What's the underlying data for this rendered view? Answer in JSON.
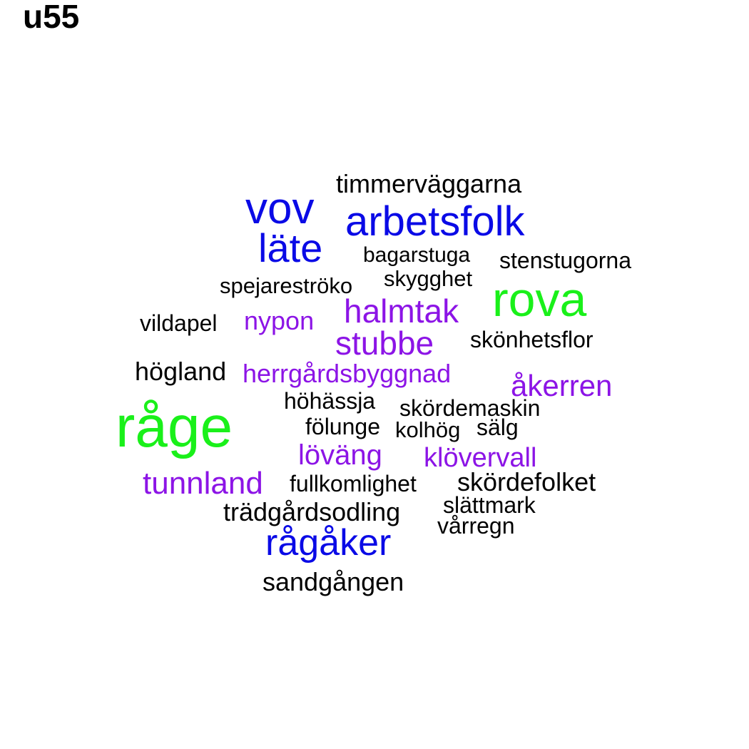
{
  "title": "u55",
  "palette": {
    "green": "#1af01a",
    "blue": "#0a0ae6",
    "purple": "#8c14e6",
    "black": "#000000"
  },
  "words": [
    {
      "text": "råge",
      "color": "green"
    },
    {
      "text": "rova",
      "color": "green"
    },
    {
      "text": "vov",
      "color": "blue"
    },
    {
      "text": "arbetsfolk",
      "color": "blue"
    },
    {
      "text": "läte",
      "color": "blue"
    },
    {
      "text": "rågåker",
      "color": "blue"
    },
    {
      "text": "halmtak",
      "color": "purple"
    },
    {
      "text": "stubbe",
      "color": "purple"
    },
    {
      "text": "nypon",
      "color": "purple"
    },
    {
      "text": "herrgårdsbyggnad",
      "color": "purple"
    },
    {
      "text": "åkerren",
      "color": "purple"
    },
    {
      "text": "löväng",
      "color": "purple"
    },
    {
      "text": "klövervall",
      "color": "purple"
    },
    {
      "text": "tunnland",
      "color": "purple"
    },
    {
      "text": "timmerväggarna",
      "color": "black"
    },
    {
      "text": "bagarstuga",
      "color": "black"
    },
    {
      "text": "stenstugorna",
      "color": "black"
    },
    {
      "text": "skygghet",
      "color": "black"
    },
    {
      "text": "spejareströko",
      "color": "black"
    },
    {
      "text": "vildapel",
      "color": "black"
    },
    {
      "text": "skönhetsflor",
      "color": "black"
    },
    {
      "text": "högland",
      "color": "black"
    },
    {
      "text": "höhässja",
      "color": "black"
    },
    {
      "text": "skördemaskin",
      "color": "black"
    },
    {
      "text": "fölunge",
      "color": "black"
    },
    {
      "text": "kolhög",
      "color": "black"
    },
    {
      "text": "sälg",
      "color": "black"
    },
    {
      "text": "fullkomlighet",
      "color": "black"
    },
    {
      "text": "skördefolket",
      "color": "black"
    },
    {
      "text": "trädgårdsodling",
      "color": "black"
    },
    {
      "text": "slättmark",
      "color": "black"
    },
    {
      "text": "vårregn",
      "color": "black"
    },
    {
      "text": "sandgången",
      "color": "black"
    }
  ]
}
